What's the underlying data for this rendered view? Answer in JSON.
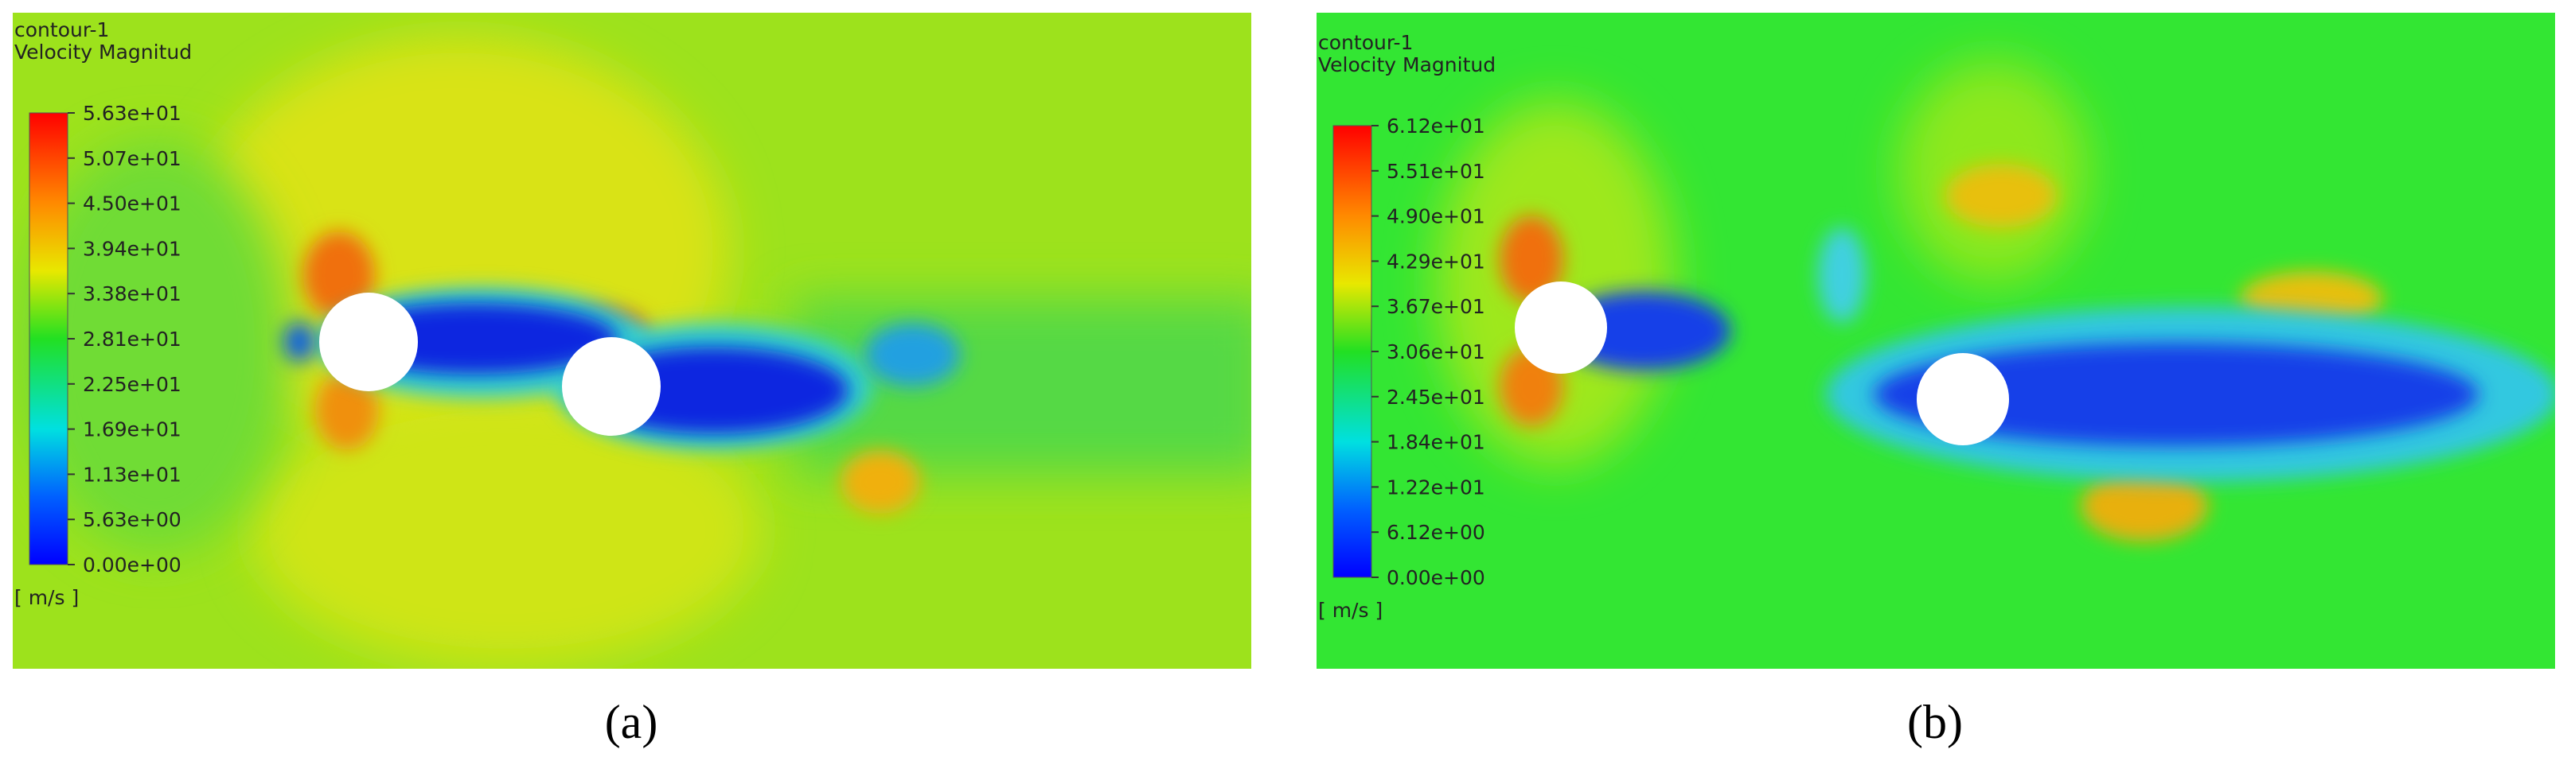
{
  "panels": [
    {
      "title": "contour-1",
      "variable": "Velocity Magnitud",
      "legend_labels": [
        "5.63e+01",
        "5.07e+01",
        "4.50e+01",
        "3.94e+01",
        "3.38e+01",
        "2.81e+01",
        "2.25e+01",
        "1.69e+01",
        "1.13e+01",
        "5.63e+00",
        "0.00e+00"
      ],
      "unit": "[ m/s ]",
      "caption": "(a)"
    },
    {
      "title": "contour-1",
      "variable": "Velocity Magnitud",
      "legend_labels": [
        "6.12e+01",
        "5.51e+01",
        "4.90e+01",
        "4.29e+01",
        "3.67e+01",
        "3.06e+01",
        "2.45e+01",
        "1.84e+01",
        "1.22e+01",
        "6.12e+00",
        "0.00e+00"
      ],
      "unit": "[ m/s ]",
      "caption": "(b)"
    }
  ]
}
